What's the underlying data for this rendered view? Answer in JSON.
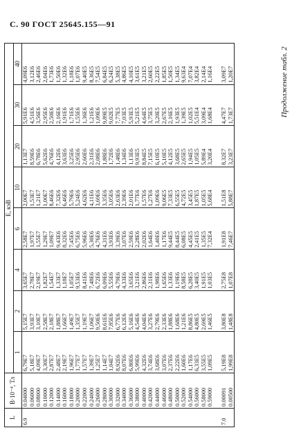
{
  "header": {
    "page_title": "С. 90 ГОСТ 25645.155—91",
    "continuation": "Продолжение табл. 2"
  },
  "table": {
    "head": {
      "L": "L",
      "B": "B·10⁻⁴, Тл",
      "E": "E, кэВ",
      "energies": [
        "1",
        "2",
        "4",
        "6",
        "10",
        "20",
        "30",
        "40"
      ]
    },
    "rows": [
      {
        "L": "6.9",
        "B": [
          "0.04000",
          "0.06000",
          "0.08000",
          "0.10000",
          "0.12000",
          "0.14000",
          "0.16000",
          "0.18000",
          "0.20000",
          "0.22000",
          "0.24000",
          "0.26000",
          "0.28000",
          "0.30000",
          "0.32000",
          "0.34000",
          "0.36000",
          "0.38000",
          "0.40000",
          "0.42000",
          "0.44000",
          "0.46000",
          "0.48000",
          "0.50000",
          "0.52000",
          "0.54000",
          "0.56000",
          "0.58000",
          "0.59000"
        ],
        "columns": [
          [
            "6,79E7",
            "5,18E7",
            "4,09E7",
            "3,30E7",
            "2,87E7",
            "2,48E7",
            "2,19E7",
            "1,96E7",
            "1,77E7",
            "1,57E7",
            "1,39E7",
            "1,25E7",
            "1,14E7",
            "1,04E7",
            "8,92E6",
            "8,07E6",
            "6,80E6",
            "5,99E6",
            "4,32E6",
            "3,74E6",
            "3,68E6",
            "3,07E6",
            "2,37E6",
            "2,22E6",
            "1,60E6",
            "1,17E6",
            "6,33E5",
            "3,55E5",
            "1,09E5"
          ],
          [
            "5,15E7",
            "3,93E7",
            "3,10E7",
            "2,58E7",
            "2,18E7",
            "1,88E7",
            "1,66E7",
            "1,49E7",
            "1,35E7",
            "1,19E7",
            "1,06E7",
            "9,50E6",
            "8,61E6",
            "7,85E6",
            "6,77E6",
            "6,12E6",
            "5,16E6",
            "4,54E6",
            "4,04E6",
            "3,27E6",
            "2,79E6",
            "2,33E6",
            "1,88E6",
            "1,68E6",
            "1,21E6",
            "8,86E5",
            "4,80E5",
            "2,69E5",
            "1,46E5"
          ],
          [
            "3,65E7",
            "2,78E7",
            "2,19E7",
            "1,82E7",
            "1,54E7",
            "1,33E7",
            "1,18E7",
            "1,05E7",
            "9,53E6",
            "8,41E6",
            "7,48E6",
            "6,72E6",
            "6,09E6",
            "5,55E6",
            "4,79E6",
            "4,33E6",
            "3,65E6",
            "3,21E6",
            "2,86E6",
            "2,31E6",
            "1,98E6",
            "1,65E6",
            "1,33E6",
            "1,19E6",
            "8,58E5",
            "6,28E5",
            "3,40E5",
            "1,91E5",
            "1,03E5"
          ],
          [
            "2,58E7",
            "1,97E7",
            "1,55E7",
            "1,29E7",
            "1,09E7",
            "9,43E6",
            "8,32E6",
            "7,45E6",
            "6,75E6",
            "5,96E6",
            "5,30E6",
            "4,76E6",
            "4,31E6",
            "3,93E6",
            "3,39E6",
            "3,07E6",
            "2,59E6",
            "2,28E6",
            "2,02E6",
            "1,64E6",
            "1,40E6",
            "1,17E6",
            "9,44E5",
            "8,44E5",
            "6,08E5",
            "4,45E5",
            "2,41E5",
            "1,35E5",
            "7,32E4"
          ],
          [
            "2,00E7",
            "1,53E7",
            "1,21E7",
            "1,00E7",
            "8,46E6",
            "7,32E6",
            "6,46E6",
            "5,79E6",
            "5,24E6",
            "4,62E6",
            "4,11E6",
            "3,69E6",
            "3,35E6",
            "3,05E6",
            "2,63E6",
            "2,39E6",
            "2,01E6",
            "1,77E6",
            "1,57E6",
            "1,27E6",
            "1,09E6",
            "9,06E5",
            "7,33E5",
            "6,55E5",
            "4,72E5",
            "3,45E5",
            "1,87E5",
            "1,05E5",
            "5,68E4"
          ],
          [
            "1,13E7",
            "8,59E6",
            "6,78E6",
            "5,62E6",
            "4,76E6",
            "4,12E6",
            "3,63E6",
            "3,25E6",
            "2,95E6",
            "2,60E6",
            "2,31E6",
            "2,08E6",
            "1,88E6",
            "1,72E6",
            "1,48E6",
            "1,34E6",
            "1,13E6",
            "9,93E5",
            "8,84E5",
            "7,15E5",
            "6,10E5",
            "5,10E5",
            "4,12E5",
            "3,68E5",
            "2,65E5",
            "1,94E5",
            "1,05E5",
            "5,89E4",
            "3,20E4"
          ],
          [
            "5,91E6",
            "4,51E6",
            "3,56E6",
            "2,95E6",
            "2,50E6",
            "2,16E6",
            "1,91E6",
            "1,71E6",
            "1,55E6",
            "1,36E6",
            "1,21E6",
            "1,09E6",
            "9,89E5",
            "9,02E5",
            "7,77E5",
            "7,03E5",
            "5,93E5",
            "5,21E5",
            "4,64E5",
            "3,75E5",
            "3,20E5",
            "2,67E5",
            "2,16E5",
            "1,93E5",
            "1,39E5",
            "1,02E5",
            "5,51E4",
            "3,09E4",
            "1,68E4"
          ],
          [
            "4,09E6",
            "3,12E6",
            "2,46E6",
            "2,04E6",
            "1,73E6",
            "1,50E6",
            "1,32E6",
            "1,18E6",
            "1,07E6",
            "9,40E5",
            "8,36E5",
            "7,54E5",
            "6,84E5",
            "6,24E5",
            "5,38E5",
            "4,86E5",
            "4,10E5",
            "3,61E5",
            "3,21E5",
            "2,60E5",
            "2,22E5",
            "1,85E5",
            "1,50E5",
            "1,34E5",
            "9,63E4",
            "7,07E4",
            "3,82E4",
            "2,14E4",
            "1,16E4"
          ]
        ]
      },
      {
        "L": "7.0",
        "B": [
          "0.00091",
          "0.00500"
        ],
        "columns": [
          [
            "5,19E8",
            "1,99E8"
          ],
          [
            "3,80E8",
            "1,48E8"
          ],
          [
            "2,75E8",
            "1,07E8"
          ],
          [
            "1,91E8",
            "7,46E7"
          ],
          [
            "1,51E8",
            "5,88E7"
          ],
          [
            "8,32E7",
            "3,23E7"
          ],
          [
            "4,47E7",
            "1,73E7"
          ],
          [
            "3,09E7",
            "1,20E7"
          ]
        ]
      }
    ]
  }
}
